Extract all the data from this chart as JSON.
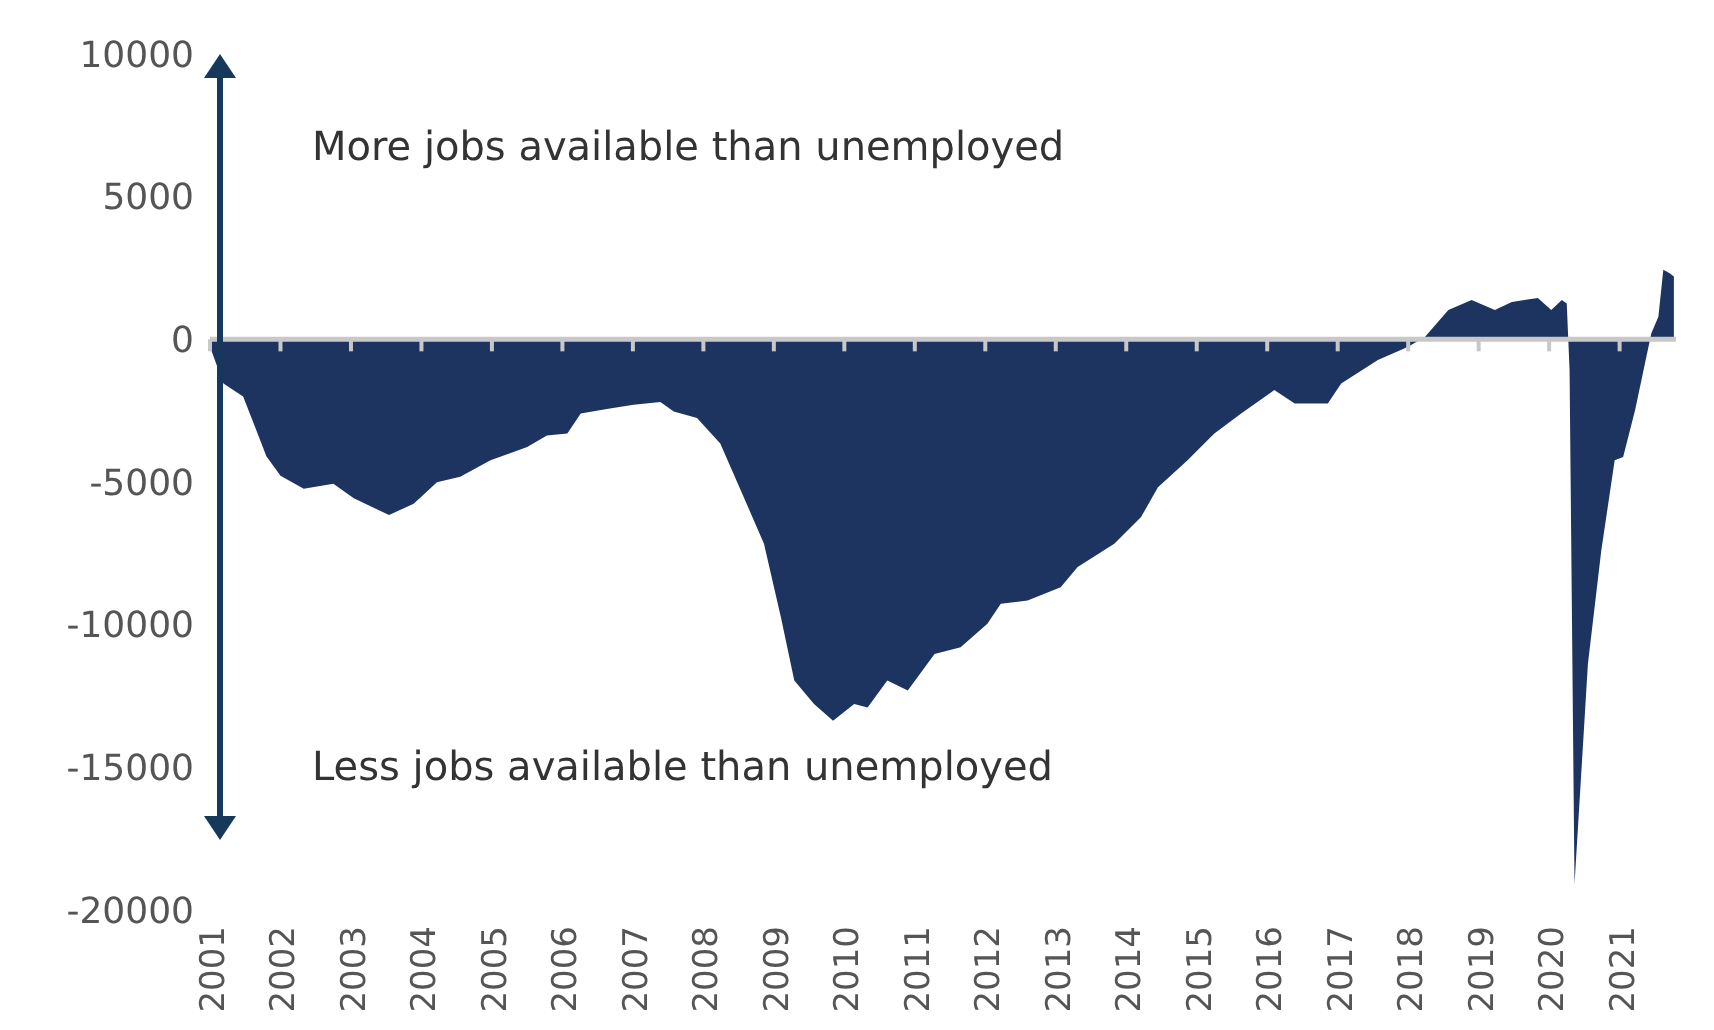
{
  "chart_data": {
    "type": "area",
    "color": "#1d3461",
    "x": [
      2001.0,
      2001.19,
      2001.47,
      2001.62,
      2001.8,
      2002.0,
      2002.33,
      2002.75,
      2003.04,
      2003.54,
      2003.89,
      2004.22,
      2004.55,
      2004.98,
      2005.5,
      2005.78,
      2006.07,
      2006.26,
      2006.63,
      2007.01,
      2007.39,
      2007.58,
      2007.91,
      2008.24,
      2008.53,
      2008.86,
      2009.1,
      2009.29,
      2009.57,
      2009.84,
      2010.14,
      2010.33,
      2010.61,
      2010.9,
      2011.28,
      2011.65,
      2012.03,
      2012.22,
      2012.6,
      2013.07,
      2013.31,
      2013.83,
      2014.21,
      2014.45,
      2014.87,
      2015.25,
      2015.63,
      2016.1,
      2016.39,
      2016.86,
      2017.05,
      2017.57,
      2018.0,
      2018.24,
      2018.57,
      2018.9,
      2019.23,
      2019.47,
      2019.84,
      2020.03,
      2020.18,
      2020.25,
      2020.29,
      2020.36,
      2020.55,
      2020.74,
      2020.93,
      2021.05,
      2021.22,
      2021.45,
      2021.55,
      2021.62,
      2021.71,
      2021.77
    ],
    "values": [
      -260,
      -1550,
      -2000,
      -2950,
      -4100,
      -4780,
      -5240,
      -5060,
      -5570,
      -6160,
      -5760,
      -5010,
      -4820,
      -4240,
      -3770,
      -3370,
      -3300,
      -2600,
      -2440,
      -2290,
      -2200,
      -2530,
      -2760,
      -3650,
      -5290,
      -7160,
      -9740,
      -11960,
      -12780,
      -13370,
      -12780,
      -12900,
      -11960,
      -12310,
      -11030,
      -10790,
      -9970,
      -9270,
      -9150,
      -8690,
      -7980,
      -7160,
      -6230,
      -5180,
      -4240,
      -3300,
      -2600,
      -1780,
      -2250,
      -2250,
      -1550,
      -720,
      -260,
      90,
      1030,
      1380,
      1030,
      1310,
      1450,
      1030,
      1380,
      1260,
      -1080,
      -19100,
      -11380,
      -7400,
      -4240,
      -4120,
      -2480,
      210,
      790,
      2440,
      2320,
      2200
    ],
    "xlim": [
      2001,
      2021.8
    ],
    "xticks": [
      2001,
      2002,
      2003,
      2004,
      2005,
      2006,
      2007,
      2008,
      2009,
      2010,
      2011,
      2012,
      2013,
      2014,
      2015,
      2016,
      2017,
      2018,
      2019,
      2020,
      2021
    ],
    "ylim": [
      -20000,
      10000
    ],
    "yticks": [
      -20000,
      -15000,
      -10000,
      -5000,
      0,
      5000,
      10000
    ],
    "annotations": [
      "More jobs available than unemployed",
      "Less jobs available than unemployed"
    ]
  }
}
